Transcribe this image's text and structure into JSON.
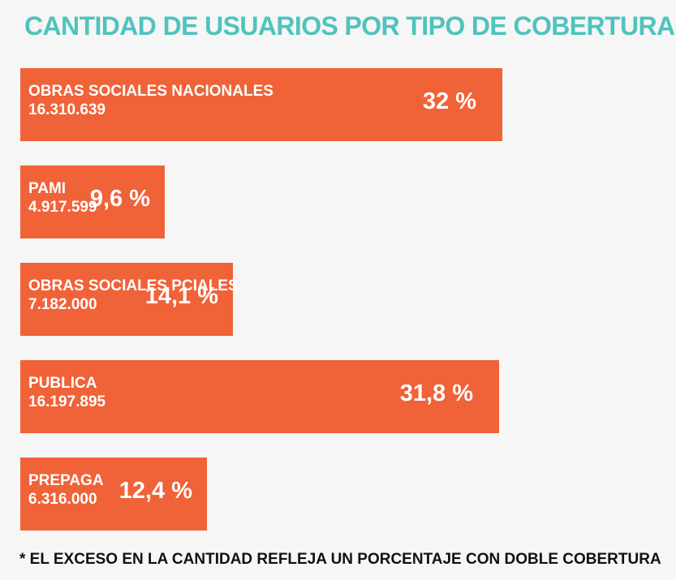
{
  "title": "CANTIDAD DE USUARIOS POR TIPO DE COBERTURA",
  "footnote": "* EL EXCESO EN LA CANTIDAD REFLEJA UN PORCENTAJE CON DOBLE COBERTURA",
  "colors": {
    "title": "#4fc3bd",
    "bar": "#f06238",
    "bar_text": "#ffffff",
    "background": "#f6f6f6"
  },
  "chart_data": {
    "type": "bar",
    "orientation": "horizontal",
    "title": "CANTIDAD DE USUARIOS POR TIPO DE COBERTURA",
    "categories": [
      "OBRAS SOCIALES NACIONALES",
      "PAMI",
      "OBRAS SOCIALES PCIALES",
      "PUBLICA",
      "PREPAGA"
    ],
    "count_labels": [
      "16.310.639",
      "4.917.599",
      "7.182.000",
      "16.197.895",
      "6.316.000"
    ],
    "values": [
      32,
      9.6,
      14.1,
      31.8,
      12.4
    ],
    "value_labels": [
      "32 %",
      "9,6 %",
      "14,1 %",
      "31,8 %",
      "12,4 %"
    ],
    "unit": "%",
    "xlim": [
      0,
      32
    ]
  }
}
